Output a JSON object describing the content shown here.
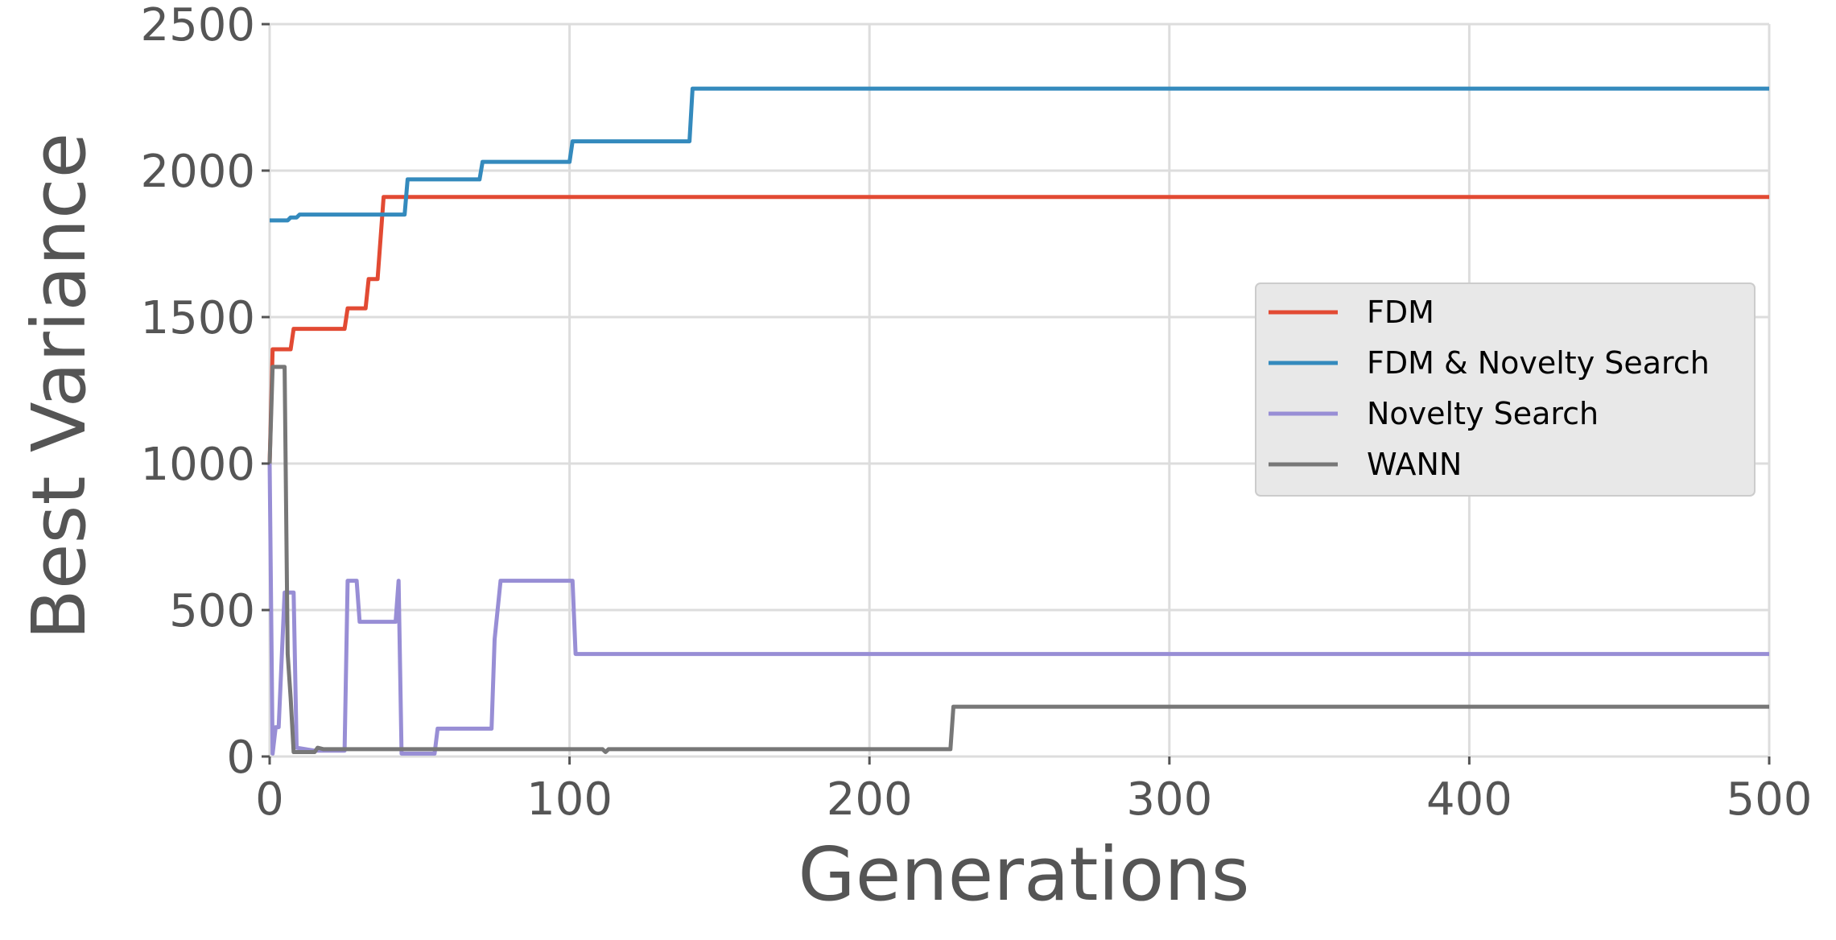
{
  "chart_data": {
    "type": "line",
    "title": "",
    "xlabel": "Generations",
    "ylabel": "Best Variance",
    "xlim": [
      0,
      500
    ],
    "ylim": [
      0,
      2500
    ],
    "xticks": [
      0,
      100,
      200,
      300,
      400,
      500
    ],
    "yticks": [
      0,
      500,
      1000,
      1500,
      2000,
      2500
    ],
    "grid": true,
    "legend_position": "center-right",
    "series": [
      {
        "name": "FDM",
        "color": "#E24A33",
        "points": [
          [
            0,
            1000
          ],
          [
            1,
            1390
          ],
          [
            7,
            1390
          ],
          [
            8,
            1460
          ],
          [
            25,
            1460
          ],
          [
            26,
            1530
          ],
          [
            32,
            1530
          ],
          [
            33,
            1630
          ],
          [
            36,
            1630
          ],
          [
            38,
            1910
          ],
          [
            500,
            1910
          ]
        ]
      },
      {
        "name": "FDM & Novelty Search",
        "color": "#348ABD",
        "points": [
          [
            0,
            1830
          ],
          [
            6,
            1830
          ],
          [
            7,
            1840
          ],
          [
            9,
            1840
          ],
          [
            10,
            1850
          ],
          [
            45,
            1850
          ],
          [
            46,
            1970
          ],
          [
            70,
            1970
          ],
          [
            71,
            2030
          ],
          [
            100,
            2030
          ],
          [
            101,
            2100
          ],
          [
            140,
            2100
          ],
          [
            141,
            2280
          ],
          [
            500,
            2280
          ]
        ]
      },
      {
        "name": "Novelty Search",
        "color": "#988ED5",
        "points": [
          [
            0,
            1000
          ],
          [
            1,
            10
          ],
          [
            2,
            100
          ],
          [
            3,
            100
          ],
          [
            5,
            560
          ],
          [
            8,
            560
          ],
          [
            9,
            30
          ],
          [
            15,
            20
          ],
          [
            25,
            20
          ],
          [
            26,
            600
          ],
          [
            29,
            600
          ],
          [
            30,
            460
          ],
          [
            42,
            460
          ],
          [
            43,
            600
          ],
          [
            44,
            10
          ],
          [
            55,
            10
          ],
          [
            56,
            95
          ],
          [
            74,
            95
          ],
          [
            75,
            400
          ],
          [
            77,
            600
          ],
          [
            101,
            600
          ],
          [
            102,
            350
          ],
          [
            500,
            350
          ]
        ]
      },
      {
        "name": "WANN",
        "color": "#777777",
        "points": [
          [
            0,
            1000
          ],
          [
            1,
            1330
          ],
          [
            5,
            1330
          ],
          [
            6,
            350
          ],
          [
            7,
            200
          ],
          [
            8,
            15
          ],
          [
            15,
            15
          ],
          [
            16,
            30
          ],
          [
            18,
            25
          ],
          [
            111,
            25
          ],
          [
            112,
            15
          ],
          [
            113,
            25
          ],
          [
            227,
            25
          ],
          [
            228,
            170
          ],
          [
            500,
            170
          ]
        ]
      }
    ]
  }
}
